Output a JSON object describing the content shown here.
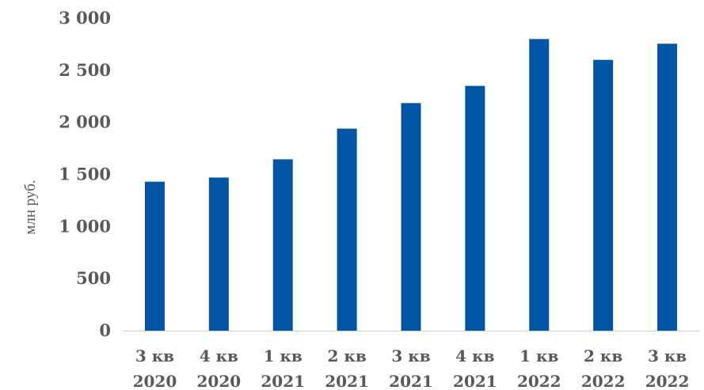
{
  "chart_data": {
    "type": "bar",
    "ylabel": "млн руб.",
    "ylim": [
      0,
      3000
    ],
    "yticks": [
      "0",
      "500",
      "1 000",
      "1 500",
      "2 000",
      "2 500",
      "3 000"
    ],
    "ytick_values": [
      0,
      500,
      1000,
      1500,
      2000,
      2500,
      3000
    ],
    "categories": [
      [
        "3 кв",
        "2020"
      ],
      [
        "4 кв",
        "2020"
      ],
      [
        "1 кв",
        "2021"
      ],
      [
        "2 кв",
        "2021"
      ],
      [
        "3 кв",
        "2021"
      ],
      [
        "4 кв",
        "2021"
      ],
      [
        "1 кв",
        "2022"
      ],
      [
        "2 кв",
        "2022"
      ],
      [
        "3 кв",
        "2022"
      ]
    ],
    "values": [
      1430,
      1470,
      1645,
      1940,
      2185,
      2350,
      2800,
      2600,
      2755
    ],
    "bar_color": "#0055A5",
    "grid": false,
    "legend": "none"
  }
}
